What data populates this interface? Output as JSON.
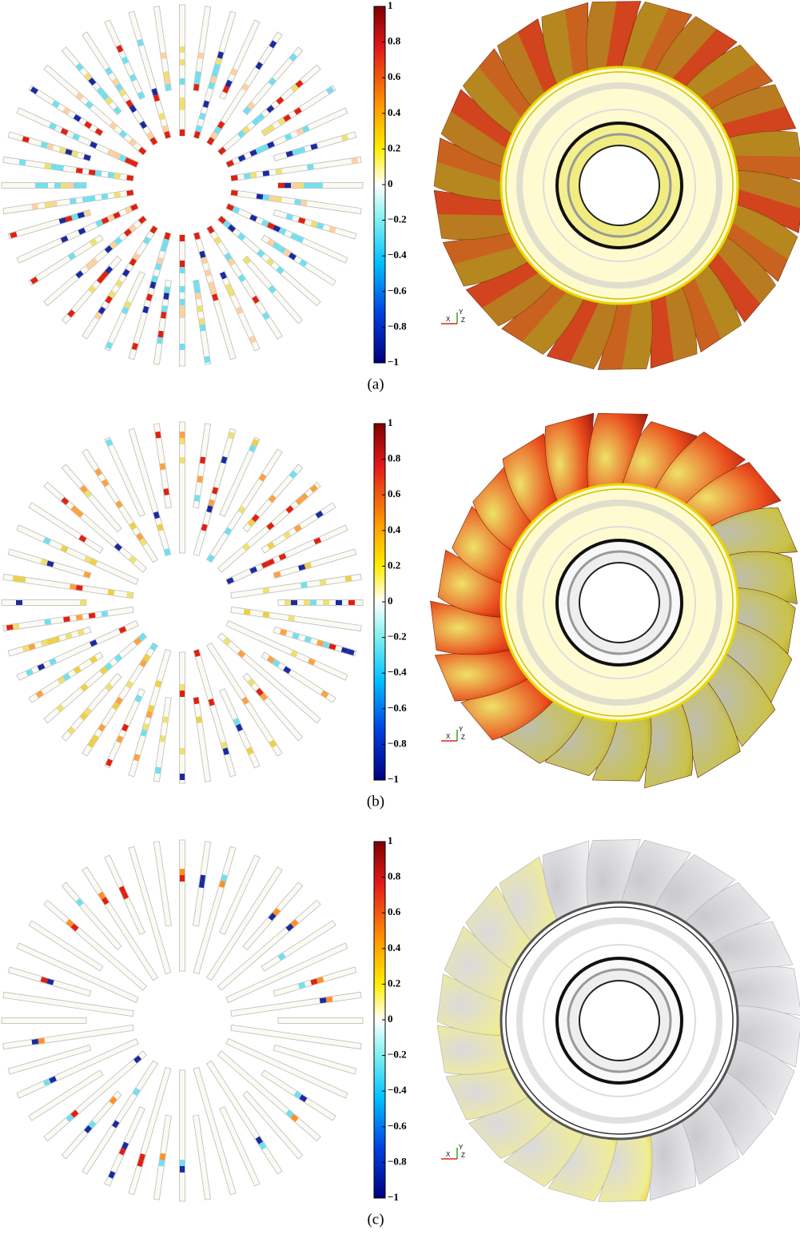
{
  "figure": {
    "panels": [
      {
        "label": "(a)",
        "colorbar_ticks": [
          "1",
          "0.8",
          "0.6",
          "0.4",
          "0.2",
          "0",
          "−0.2",
          "−0.4",
          "−0.6",
          "−0.8",
          "−1"
        ],
        "axes": [
          "Y",
          "X",
          "Z"
        ]
      },
      {
        "label": "(b)",
        "colorbar_ticks": [
          "1",
          "0.8",
          "0.6",
          "0.4",
          "0.2",
          "0",
          "−0.2",
          "−0.4",
          "−0.6",
          "−0.8",
          "−1"
        ],
        "axes": [
          "Y",
          "X",
          "Z"
        ]
      },
      {
        "label": "(c)",
        "colorbar_ticks": [
          "1",
          "0.8",
          "0.6",
          "0.4",
          "0.2",
          "0",
          "−0.2",
          "−0.4",
          "−0.6",
          "−0.8",
          "−1"
        ],
        "axes": [
          "Y",
          "X",
          "Z"
        ]
      }
    ]
  }
}
